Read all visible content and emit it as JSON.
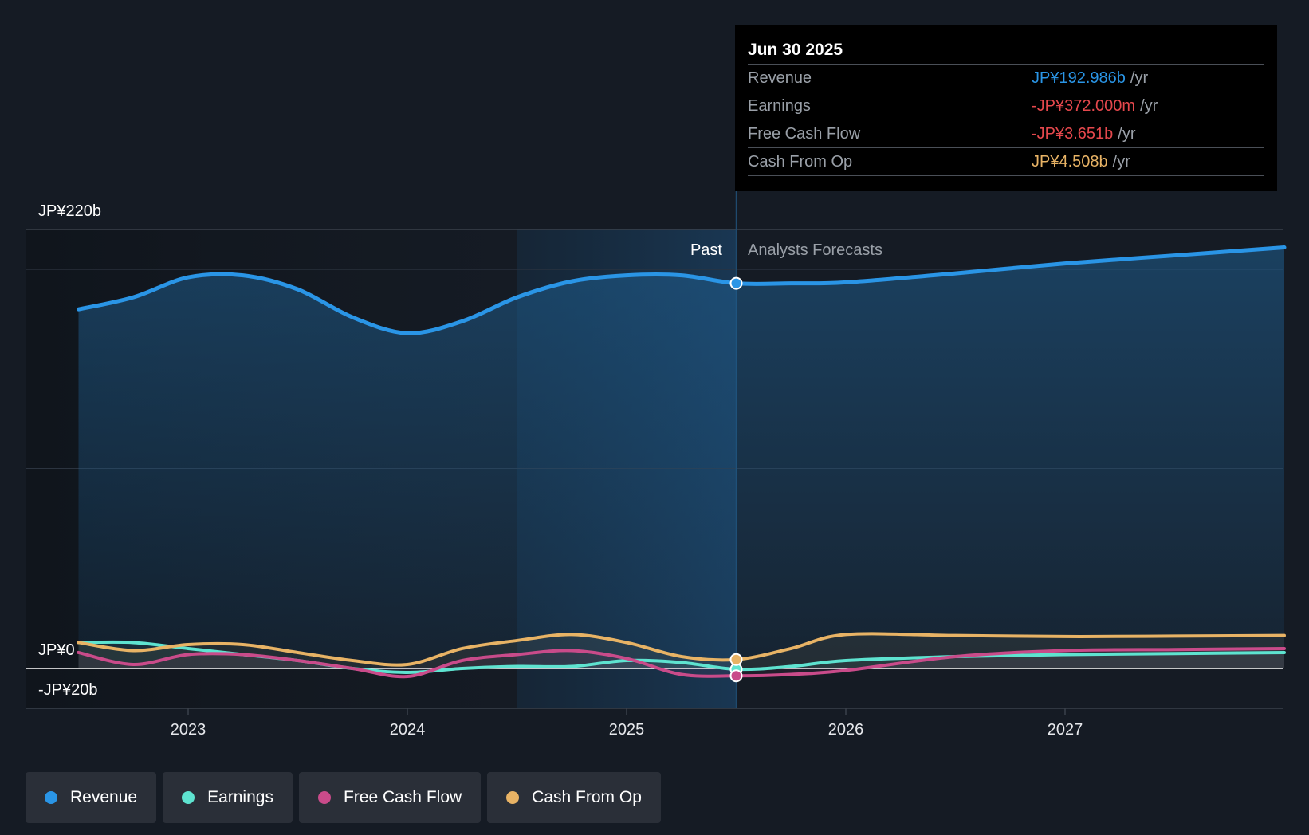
{
  "chart_data": {
    "type": "line",
    "title": "",
    "y_axis": {
      "labels": [
        "JP¥220b",
        "JP¥0",
        "-JP¥20b"
      ],
      "ylim": [
        -20,
        220
      ]
    },
    "x_axis": {
      "ticks": [
        "2023",
        "2024",
        "2025",
        "2026",
        "2027"
      ]
    },
    "sections": {
      "past_label": "Past",
      "forecast_label": "Analysts Forecasts"
    },
    "series": [
      {
        "name": "Revenue",
        "color": "#2a95e6",
        "x": [
          2022.5,
          2022.75,
          2023.0,
          2023.25,
          2023.5,
          2023.75,
          2024.0,
          2024.25,
          2024.5,
          2024.75,
          2025.0,
          2025.25,
          2025.5,
          2025.75,
          2026.0,
          2026.5,
          2027.0,
          2027.5,
          2028.0
        ],
        "values": [
          180,
          186,
          196,
          197,
          190,
          176,
          168,
          174,
          186,
          194,
          197,
          197,
          193,
          193,
          193.5,
          198,
          203,
          207,
          211
        ]
      },
      {
        "name": "Earnings",
        "color": "#5ee3d0",
        "x": [
          2022.5,
          2022.75,
          2023.0,
          2023.25,
          2023.5,
          2023.75,
          2024.0,
          2024.25,
          2024.5,
          2024.75,
          2025.0,
          2025.25,
          2025.5,
          2025.75,
          2026.0,
          2026.5,
          2027.0,
          2027.5,
          2028.0
        ],
        "values": [
          13,
          13,
          10,
          7,
          4,
          0,
          -2,
          0,
          1,
          1,
          4,
          3,
          -0.4,
          1,
          4,
          6,
          7,
          7.5,
          8
        ]
      },
      {
        "name": "Free Cash Flow",
        "color": "#c94b8a",
        "x": [
          2022.5,
          2022.75,
          2023.0,
          2023.25,
          2023.5,
          2023.75,
          2024.0,
          2024.25,
          2024.5,
          2024.75,
          2025.0,
          2025.25,
          2025.5,
          2025.75,
          2026.0,
          2026.5,
          2027.0,
          2027.5,
          2028.0
        ],
        "values": [
          8,
          2,
          7,
          7,
          4,
          0,
          -4,
          4,
          7,
          9,
          5,
          -3,
          -3.7,
          -3,
          -1,
          6,
          9,
          9.5,
          10
        ]
      },
      {
        "name": "Cash From Op",
        "color": "#e8b365",
        "x": [
          2022.5,
          2022.75,
          2023.0,
          2023.25,
          2023.5,
          2023.75,
          2024.0,
          2024.25,
          2024.5,
          2024.75,
          2025.0,
          2025.25,
          2025.5,
          2025.75,
          2026.0,
          2026.5,
          2027.0,
          2027.5,
          2028.0
        ],
        "values": [
          13,
          9,
          12,
          12,
          8,
          4,
          2,
          10,
          14,
          17,
          13,
          6,
          4.5,
          10,
          17,
          16.5,
          16,
          16.2,
          16.5
        ]
      }
    ],
    "highlight_x": 2025.5
  },
  "tooltip": {
    "date": "Jun 30 2025",
    "rows": [
      {
        "name": "Revenue",
        "value": "JP¥192.986b",
        "unit": "/yr",
        "color": "#2a95e6"
      },
      {
        "name": "Earnings",
        "value": "-JP¥372.000m",
        "unit": "/yr",
        "color": "#e5484d"
      },
      {
        "name": "Free Cash Flow",
        "value": "-JP¥3.651b",
        "unit": "/yr",
        "color": "#e5484d"
      },
      {
        "name": "Cash From Op",
        "value": "JP¥4.508b",
        "unit": "/yr",
        "color": "#e8b365"
      }
    ]
  },
  "legend": [
    {
      "label": "Revenue",
      "color": "#2a95e6"
    },
    {
      "label": "Earnings",
      "color": "#5ee3d0"
    },
    {
      "label": "Free Cash Flow",
      "color": "#c94b8a"
    },
    {
      "label": "Cash From Op",
      "color": "#e8b365"
    }
  ]
}
